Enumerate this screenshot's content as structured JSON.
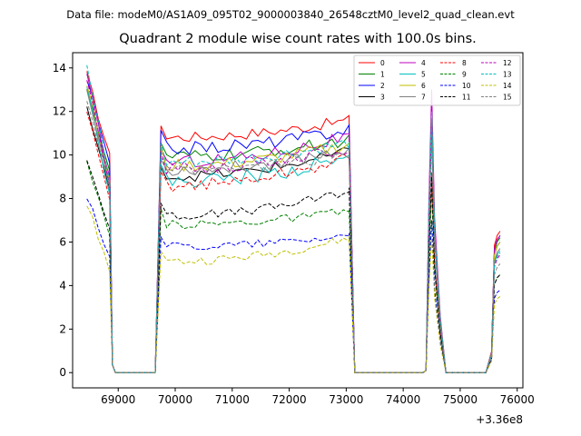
{
  "chart_data": {
    "type": "line",
    "suptitle": "Data file: modeM0/AS1A09_095T02_9000003840_26548cztM0_level2_quad_clean.evt",
    "title": "Quadrant 2 module wise count rates with 100.0s bins.",
    "xlabel": "",
    "ylabel": "",
    "x_offset_label": "+3.36e8",
    "xlim": [
      68200,
      76100
    ],
    "ylim": [
      -0.7,
      14.7
    ],
    "x_ticks": [
      69000,
      70000,
      71000,
      72000,
      73000,
      74000,
      75000,
      76000
    ],
    "x_tick_labels": [
      "69000",
      "70000",
      "71000",
      "72000",
      "73000",
      "74000",
      "75000",
      "76000"
    ],
    "y_ticks": [
      0,
      2,
      4,
      6,
      8,
      10,
      12,
      14
    ],
    "y_tick_labels": [
      "0",
      "2",
      "4",
      "6",
      "8",
      "10",
      "12",
      "14"
    ],
    "grid": false,
    "legend": {
      "placement": "top-right",
      "columns": 4
    },
    "segments": [
      {
        "start": 68450,
        "end": 68850
      },
      {
        "start": 69750,
        "end": 73050
      },
      {
        "start": 74450,
        "end": 74650
      },
      {
        "start": 75550,
        "end": 75700
      }
    ],
    "gaps": [
      {
        "start": 68950,
        "end": 69650
      },
      {
        "start": 73150,
        "end": 74350
      },
      {
        "start": 74750,
        "end": 75450
      }
    ],
    "series": [
      {
        "name": "0",
        "color": "#ff0000",
        "dash": false,
        "level": 10.8,
        "amp": 0.25,
        "start": 13.7,
        "peak": 11.5,
        "last": 6.5,
        "end_level": 11.7
      },
      {
        "name": "1",
        "color": "#008000",
        "dash": false,
        "level": 9.9,
        "amp": 0.3,
        "start": 13.2,
        "peak": 12.1,
        "last": 6.2,
        "end_level": 10.8
      },
      {
        "name": "2",
        "color": "#0000ff",
        "dash": false,
        "level": 10.3,
        "amp": 0.3,
        "start": 13.5,
        "peak": 12.2,
        "last": 6.3,
        "end_level": 11.3
      },
      {
        "name": "3",
        "color": "#000000",
        "dash": false,
        "level": 9.0,
        "amp": 0.25,
        "start": 12.2,
        "peak": 11.5,
        "last": 6.0,
        "end_level": 10.3
      },
      {
        "name": "4",
        "color": "#bf00bf",
        "dash": false,
        "level": 9.7,
        "amp": 0.3,
        "start": 13.6,
        "peak": 13.0,
        "last": 6.3,
        "end_level": 11.0
      },
      {
        "name": "5",
        "color": "#00bfbf",
        "dash": false,
        "level": 8.8,
        "amp": 0.35,
        "start": 13.4,
        "peak": 12.0,
        "last": 5.6,
        "end_level": 10.0
      },
      {
        "name": "6",
        "color": "#bfbf00",
        "dash": false,
        "level": 9.5,
        "amp": 0.3,
        "start": 13.3,
        "peak": 11.8,
        "last": 6.0,
        "end_level": 10.6
      },
      {
        "name": "7",
        "color": "#808080",
        "dash": false,
        "level": 9.3,
        "amp": 0.3,
        "start": 13.0,
        "peak": 11.4,
        "last": 5.7,
        "end_level": 10.4
      },
      {
        "name": "8",
        "color": "#ff0000",
        "dash": true,
        "level": 8.6,
        "amp": 0.3,
        "start": 11.9,
        "peak": 9.2,
        "last": 5.5,
        "end_level": 10.0
      },
      {
        "name": "9",
        "color": "#008000",
        "dash": true,
        "level": 6.8,
        "amp": 0.2,
        "start": 9.6,
        "peak": 8.4,
        "last": 4.5,
        "end_level": 7.5
      },
      {
        "name": "10",
        "color": "#0000ff",
        "dash": true,
        "level": 5.8,
        "amp": 0.2,
        "start": 8.1,
        "peak": 7.0,
        "last": 3.8,
        "end_level": 6.4
      },
      {
        "name": "11",
        "color": "#000000",
        "dash": true,
        "level": 7.2,
        "amp": 0.2,
        "start": 9.8,
        "peak": 9.0,
        "last": 4.5,
        "end_level": 8.5
      },
      {
        "name": "12",
        "color": "#bf00bf",
        "dash": true,
        "level": 9.4,
        "amp": 0.3,
        "start": 13.4,
        "peak": 11.5,
        "last": 5.4,
        "end_level": 10.4
      },
      {
        "name": "13",
        "color": "#00bfbf",
        "dash": true,
        "level": 9.6,
        "amp": 0.3,
        "start": 14.0,
        "peak": 11.7,
        "last": 5.5,
        "end_level": 10.6
      },
      {
        "name": "14",
        "color": "#bfbf00",
        "dash": true,
        "level": 5.1,
        "amp": 0.2,
        "start": 7.8,
        "peak": 6.3,
        "last": 3.5,
        "end_level": 6.3
      },
      {
        "name": "15",
        "color": "#808080",
        "dash": true,
        "level": 9.2,
        "amp": 0.3,
        "start": 12.6,
        "peak": 10.5,
        "last": 5.0,
        "end_level": 10.2
      }
    ]
  }
}
